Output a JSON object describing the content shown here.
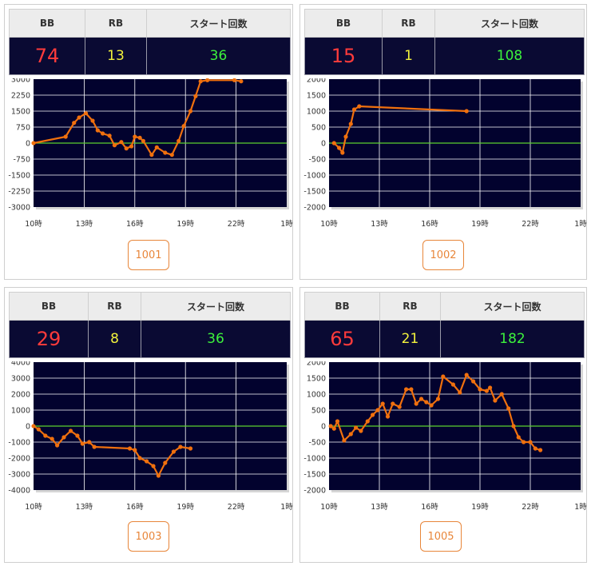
{
  "headers": {
    "bb": "BB",
    "rb": "RB",
    "start": "スタート回数"
  },
  "style": {
    "plot_bg": "#02022e",
    "line": "#f0700e",
    "zero_line": "#5bd22e",
    "grid": "#ffffff",
    "bb_color": "#ff3b3b",
    "rb_color": "#f2f23c",
    "start_color": "#3cf23c"
  },
  "cards": [
    {
      "stats": {
        "bb": "74",
        "rb": "13",
        "start": "36"
      },
      "button_label": "1001",
      "chart_data": {
        "type": "line",
        "x_ticks": [
          "10時",
          "13時",
          "16時",
          "19時",
          "22時",
          "1時"
        ],
        "y_ticks": [
          "3000",
          "2250",
          "1500",
          "750",
          "0",
          "-750",
          "-1500",
          "-2250",
          "-3000"
        ],
        "ylim": [
          -3000,
          3000
        ],
        "grid": true,
        "points": [
          [
            10.0,
            0
          ],
          [
            11.9,
            300
          ],
          [
            12.4,
            950
          ],
          [
            12.7,
            1200
          ],
          [
            13.1,
            1400
          ],
          [
            13.5,
            1050
          ],
          [
            13.8,
            600
          ],
          [
            14.1,
            450
          ],
          [
            14.5,
            350
          ],
          [
            14.8,
            -100
          ],
          [
            15.2,
            50
          ],
          [
            15.5,
            -250
          ],
          [
            15.8,
            -150
          ],
          [
            16.0,
            300
          ],
          [
            16.3,
            250
          ],
          [
            16.5,
            100
          ],
          [
            17.0,
            -550
          ],
          [
            17.3,
            -200
          ],
          [
            17.8,
            -450
          ],
          [
            18.2,
            -550
          ],
          [
            18.6,
            100
          ],
          [
            18.9,
            800
          ],
          [
            19.3,
            1500
          ],
          [
            19.6,
            2200
          ],
          [
            19.9,
            2900
          ],
          [
            20.3,
            2950
          ],
          [
            21.9,
            2950
          ],
          [
            22.3,
            2900
          ]
        ]
      }
    },
    {
      "stats": {
        "bb": "15",
        "rb": "1",
        "start": "108"
      },
      "button_label": "1002",
      "chart_data": {
        "type": "line",
        "x_ticks": [
          "10時",
          "13時",
          "16時",
          "19時",
          "22時",
          "1時"
        ],
        "y_ticks": [
          "2000",
          "1500",
          "1000",
          "500",
          "0",
          "-500",
          "-1000",
          "-1500",
          "-2000"
        ],
        "ylim": [
          -2000,
          2000
        ],
        "grid": true,
        "points": [
          [
            10.3,
            0
          ],
          [
            10.6,
            -150
          ],
          [
            10.8,
            -300
          ],
          [
            11.0,
            200
          ],
          [
            11.3,
            600
          ],
          [
            11.5,
            1050
          ],
          [
            11.8,
            1150
          ],
          [
            18.2,
            1000
          ]
        ]
      }
    },
    {
      "stats": {
        "bb": "29",
        "rb": "8",
        "start": "36"
      },
      "button_label": "1003",
      "chart_data": {
        "type": "line",
        "x_ticks": [
          "10時",
          "13時",
          "16時",
          "19時",
          "22時",
          "1時"
        ],
        "y_ticks": [
          "4000",
          "3000",
          "2000",
          "1000",
          "0",
          "-1000",
          "-2000",
          "-3000",
          "-4000"
        ],
        "ylim": [
          -4000,
          4000
        ],
        "grid": true,
        "points": [
          [
            10.0,
            0
          ],
          [
            10.3,
            -200
          ],
          [
            10.7,
            -600
          ],
          [
            11.1,
            -800
          ],
          [
            11.4,
            -1200
          ],
          [
            11.8,
            -700
          ],
          [
            12.2,
            -300
          ],
          [
            12.6,
            -600
          ],
          [
            12.9,
            -1100
          ],
          [
            13.3,
            -1000
          ],
          [
            13.6,
            -1300
          ],
          [
            15.7,
            -1400
          ],
          [
            16.0,
            -1500
          ],
          [
            16.3,
            -2000
          ],
          [
            16.7,
            -2200
          ],
          [
            17.1,
            -2500
          ],
          [
            17.4,
            -3100
          ],
          [
            17.8,
            -2300
          ],
          [
            18.3,
            -1600
          ],
          [
            18.7,
            -1300
          ],
          [
            19.3,
            -1400
          ]
        ]
      }
    },
    {
      "stats": {
        "bb": "65",
        "rb": "21",
        "start": "182"
      },
      "button_label": "1005",
      "chart_data": {
        "type": "line",
        "x_ticks": [
          "10時",
          "13時",
          "16時",
          "19時",
          "22時",
          "1時"
        ],
        "y_ticks": [
          "2000",
          "1500",
          "1000",
          "500",
          "0",
          "-500",
          "-1000",
          "-1500",
          "-2000"
        ],
        "ylim": [
          -2000,
          2000
        ],
        "grid": true,
        "points": [
          [
            10.1,
            0
          ],
          [
            10.3,
            -80
          ],
          [
            10.5,
            150
          ],
          [
            10.9,
            -450
          ],
          [
            11.3,
            -250
          ],
          [
            11.6,
            -50
          ],
          [
            11.9,
            -150
          ],
          [
            12.3,
            150
          ],
          [
            12.6,
            350
          ],
          [
            12.9,
            500
          ],
          [
            13.2,
            700
          ],
          [
            13.5,
            300
          ],
          [
            13.8,
            700
          ],
          [
            14.2,
            600
          ],
          [
            14.6,
            1150
          ],
          [
            14.9,
            1150
          ],
          [
            15.2,
            700
          ],
          [
            15.5,
            850
          ],
          [
            15.8,
            750
          ],
          [
            16.1,
            650
          ],
          [
            16.5,
            850
          ],
          [
            16.8,
            1550
          ],
          [
            17.4,
            1300
          ],
          [
            17.8,
            1050
          ],
          [
            18.2,
            1600
          ],
          [
            18.6,
            1400
          ],
          [
            19.0,
            1150
          ],
          [
            19.4,
            1100
          ],
          [
            19.6,
            1200
          ],
          [
            19.9,
            800
          ],
          [
            20.3,
            1000
          ],
          [
            20.7,
            550
          ],
          [
            21.0,
            0
          ],
          [
            21.3,
            -350
          ],
          [
            21.6,
            -500
          ],
          [
            22.0,
            -500
          ],
          [
            22.3,
            -700
          ],
          [
            22.6,
            -750
          ]
        ]
      }
    }
  ]
}
